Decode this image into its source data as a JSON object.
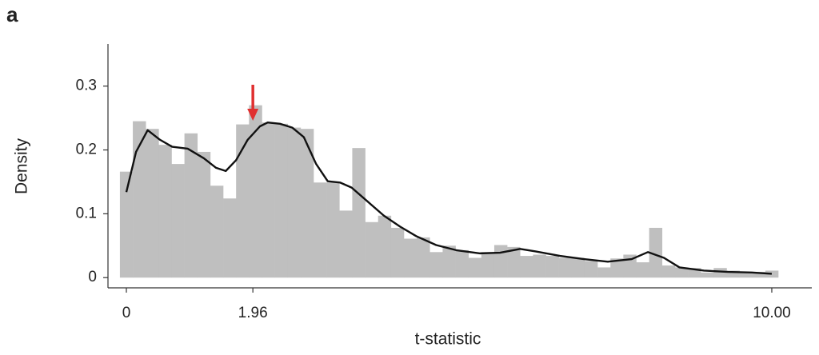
{
  "panel_label": "a",
  "chart_data": {
    "type": "histogram",
    "x_label": "t-statistic",
    "y_label": "Density",
    "bins": [
      -0.1,
      0.1,
      0.3,
      0.5,
      0.7,
      0.9,
      1.1,
      1.3,
      1.5,
      1.7,
      1.9,
      2.1,
      2.3,
      2.5,
      2.7,
      2.9,
      3.1,
      3.3,
      3.5,
      3.7,
      3.9,
      4.1,
      4.3,
      4.5,
      4.7,
      4.9,
      5.1,
      5.3,
      5.5,
      5.7,
      5.9,
      6.1,
      6.3,
      6.5,
      6.7,
      6.9,
      7.1,
      7.3,
      7.5,
      7.7,
      7.9,
      8.1,
      8.3,
      8.5,
      8.7,
      8.9,
      9.1,
      9.3,
      9.5,
      9.7,
      9.9,
      10.1
    ],
    "values": [
      0.166,
      0.245,
      0.233,
      0.208,
      0.178,
      0.226,
      0.197,
      0.144,
      0.124,
      0.24,
      0.27,
      0.243,
      0.241,
      0.235,
      0.233,
      0.149,
      0.149,
      0.105,
      0.203,
      0.087,
      0.097,
      0.078,
      0.061,
      0.063,
      0.04,
      0.05,
      0.043,
      0.031,
      0.04,
      0.051,
      0.048,
      0.034,
      0.036,
      0.034,
      0.031,
      0.031,
      0.026,
      0.016,
      0.03,
      0.036,
      0.024,
      0.078,
      0.019,
      0.016,
      0.015,
      0.008,
      0.015,
      0.011,
      0.008,
      0.009,
      0.011
    ],
    "color": "#bfbfbf",
    "overlay": {
      "type": "line",
      "color": "#111111",
      "x": [
        0,
        0.15,
        0.33,
        0.52,
        0.71,
        0.95,
        1.2,
        1.39,
        1.54,
        1.7,
        1.88,
        2.07,
        2.19,
        2.38,
        2.57,
        2.75,
        2.94,
        3.12,
        3.31,
        3.49,
        3.74,
        3.99,
        4.24,
        4.49,
        4.8,
        5.11,
        5.48,
        5.79,
        6.1,
        6.34,
        6.72,
        7.09,
        7.46,
        7.83,
        8.08,
        8.33,
        8.57,
        8.95,
        9.32,
        9.69,
        10
      ],
      "values": [
        0.134,
        0.197,
        0.231,
        0.216,
        0.205,
        0.202,
        0.187,
        0.172,
        0.167,
        0.184,
        0.216,
        0.237,
        0.243,
        0.241,
        0.235,
        0.22,
        0.178,
        0.151,
        0.149,
        0.141,
        0.119,
        0.097,
        0.08,
        0.065,
        0.051,
        0.043,
        0.038,
        0.039,
        0.045,
        0.041,
        0.034,
        0.029,
        0.025,
        0.029,
        0.04,
        0.031,
        0.016,
        0.011,
        0.009,
        0.008,
        0.006
      ]
    },
    "marker_color": "#e03030",
    "xlim": [
      -0.285,
      10.62
    ],
    "ylim": [
      -0.016,
      0.366
    ],
    "xticks": [
      0,
      1.96,
      {
        "value": 10,
        "label": "10.00"
      }
    ],
    "yticks": [
      0,
      0.1,
      0.2,
      0.3
    ],
    "grid": false
  }
}
